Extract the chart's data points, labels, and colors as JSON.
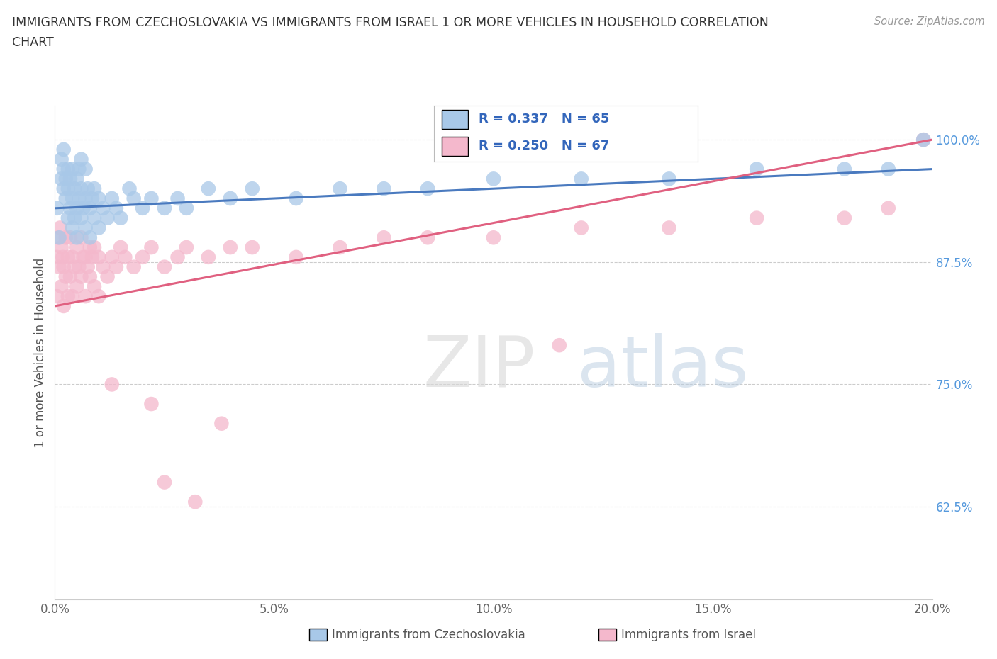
{
  "title_line1": "IMMIGRANTS FROM CZECHOSLOVAKIA VS IMMIGRANTS FROM ISRAEL 1 OR MORE VEHICLES IN HOUSEHOLD CORRELATION",
  "title_line2": "CHART",
  "source": "Source: ZipAtlas.com",
  "ylabel": "1 or more Vehicles in Household",
  "legend_czech": "Immigrants from Czechoslovakia",
  "legend_israel": "Immigrants from Israel",
  "R_czech": 0.337,
  "N_czech": 65,
  "R_israel": 0.25,
  "N_israel": 67,
  "color_czech": "#a8c8e8",
  "color_israel": "#f4b8cc",
  "line_color_czech": "#4a7abf",
  "line_color_israel": "#e06080",
  "x_min": 0.0,
  "x_max": 20.0,
  "y_min": 53.0,
  "y_max": 103.5,
  "yticks": [
    62.5,
    75.0,
    87.5,
    100.0
  ],
  "ytick_labels": [
    "62.5%",
    "75.0%",
    "87.5%",
    "100.0%"
  ],
  "watermark_zip": "ZIP",
  "watermark_atlas": "atlas",
  "czech_x": [
    0.05,
    0.1,
    0.15,
    0.15,
    0.2,
    0.2,
    0.2,
    0.25,
    0.25,
    0.3,
    0.3,
    0.3,
    0.35,
    0.35,
    0.4,
    0.4,
    0.4,
    0.45,
    0.45,
    0.5,
    0.5,
    0.5,
    0.55,
    0.55,
    0.6,
    0.6,
    0.6,
    0.65,
    0.7,
    0.7,
    0.7,
    0.75,
    0.8,
    0.8,
    0.85,
    0.9,
    0.9,
    1.0,
    1.0,
    1.1,
    1.2,
    1.3,
    1.4,
    1.5,
    1.7,
    1.8,
    2.0,
    2.2,
    2.5,
    2.8,
    3.0,
    3.5,
    4.0,
    4.5,
    5.5,
    6.5,
    7.5,
    8.5,
    10.0,
    12.0,
    14.0,
    16.0,
    18.0,
    19.0,
    19.8
  ],
  "czech_y": [
    93,
    90,
    96,
    98,
    95,
    97,
    99,
    94,
    96,
    92,
    95,
    97,
    93,
    96,
    91,
    94,
    97,
    92,
    95,
    90,
    93,
    96,
    94,
    97,
    92,
    95,
    98,
    93,
    91,
    94,
    97,
    95,
    90,
    93,
    94,
    92,
    95,
    91,
    94,
    93,
    92,
    94,
    93,
    92,
    95,
    94,
    93,
    94,
    93,
    94,
    93,
    95,
    94,
    95,
    94,
    95,
    95,
    95,
    96,
    96,
    96,
    97,
    97,
    97,
    100
  ],
  "israel_x": [
    0.05,
    0.05,
    0.08,
    0.1,
    0.12,
    0.15,
    0.15,
    0.18,
    0.2,
    0.2,
    0.25,
    0.25,
    0.3,
    0.3,
    0.35,
    0.35,
    0.4,
    0.4,
    0.45,
    0.5,
    0.5,
    0.55,
    0.6,
    0.6,
    0.65,
    0.7,
    0.7,
    0.75,
    0.8,
    0.8,
    0.85,
    0.9,
    0.9,
    1.0,
    1.0,
    1.1,
    1.2,
    1.3,
    1.4,
    1.5,
    1.6,
    1.8,
    2.0,
    2.2,
    2.5,
    2.8,
    3.0,
    3.5,
    4.0,
    4.5,
    5.5,
    6.5,
    7.5,
    8.5,
    10.0,
    12.0,
    14.0,
    16.0,
    18.0,
    19.0,
    19.8,
    1.3,
    2.2,
    3.8,
    11.5,
    2.5,
    3.2
  ],
  "israel_y": [
    88,
    84,
    90,
    87,
    91,
    85,
    89,
    88,
    83,
    87,
    86,
    90,
    84,
    88,
    86,
    90,
    84,
    88,
    87,
    85,
    89,
    87,
    86,
    90,
    88,
    84,
    88,
    87,
    86,
    89,
    88,
    85,
    89,
    84,
    88,
    87,
    86,
    88,
    87,
    89,
    88,
    87,
    88,
    89,
    87,
    88,
    89,
    88,
    89,
    89,
    88,
    89,
    90,
    90,
    90,
    91,
    91,
    92,
    92,
    93,
    100,
    75,
    73,
    71,
    79,
    65,
    63
  ]
}
